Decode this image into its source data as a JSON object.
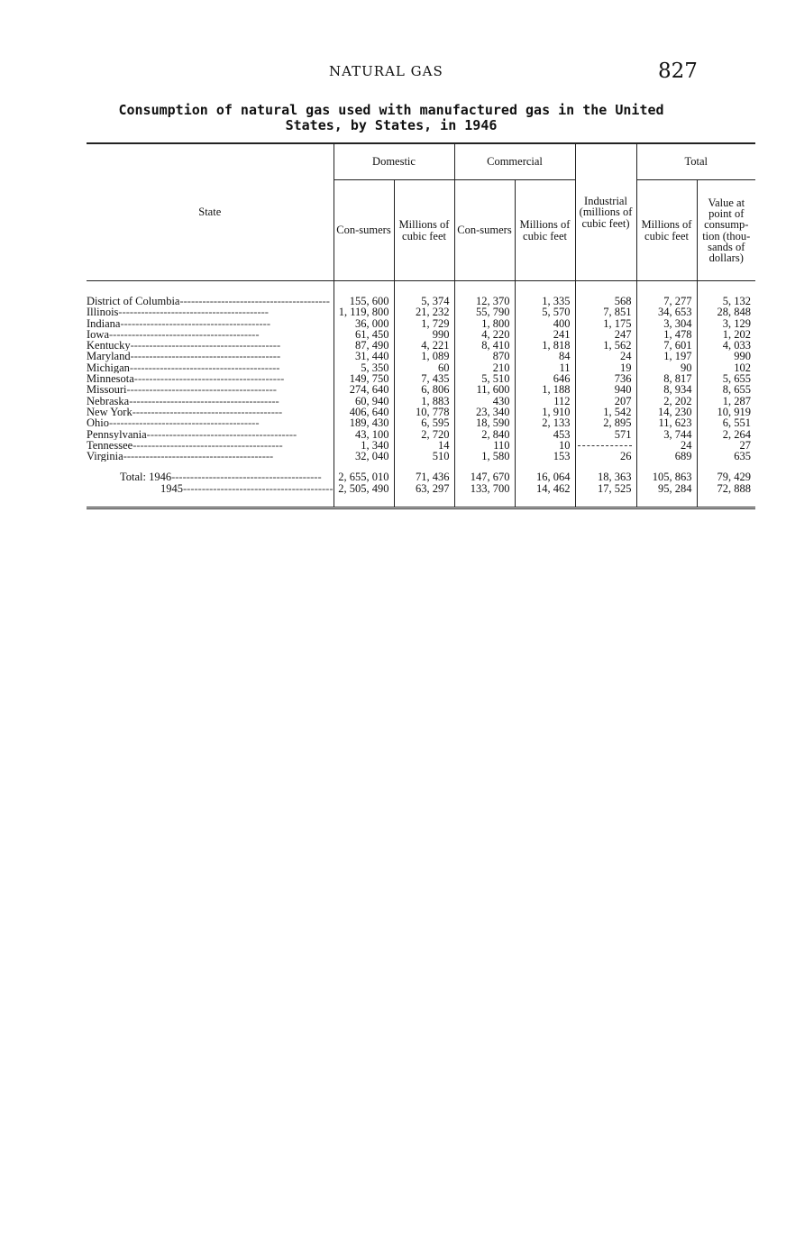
{
  "header": {
    "running_title": "NATURAL GAS",
    "page_number": "827"
  },
  "table": {
    "title": "Consumption of natural gas used with manufactured gas in the United States, by States, in 1946",
    "groups": {
      "domestic": "Domestic",
      "commercial": "Commercial",
      "total": "Total"
    },
    "columns": {
      "state": "State",
      "consumers": "Con-sumers",
      "mcf": "Millions of cubic feet",
      "industrial": "Industrial (millions of cubic feet)",
      "value": "Value at point of consump-tion (thou-sands of dollars)"
    },
    "rows": [
      {
        "state": "District of Columbia",
        "dom_cons": "155, 600",
        "dom_mcf": "5, 374",
        "com_cons": "12, 370",
        "com_mcf": "1, 335",
        "ind": "568",
        "tot_mcf": "7, 277",
        "value": "5, 132"
      },
      {
        "state": "Illinois",
        "dom_cons": "1, 119, 800",
        "dom_mcf": "21, 232",
        "com_cons": "55, 790",
        "com_mcf": "5, 570",
        "ind": "7, 851",
        "tot_mcf": "34, 653",
        "value": "28, 848"
      },
      {
        "state": "Indiana",
        "dom_cons": "36, 000",
        "dom_mcf": "1, 729",
        "com_cons": "1, 800",
        "com_mcf": "400",
        "ind": "1, 175",
        "tot_mcf": "3, 304",
        "value": "3, 129"
      },
      {
        "state": "Iowa",
        "dom_cons": "61, 450",
        "dom_mcf": "990",
        "com_cons": "4, 220",
        "com_mcf": "241",
        "ind": "247",
        "tot_mcf": "1, 478",
        "value": "1, 202"
      },
      {
        "state": "Kentucky",
        "dom_cons": "87, 490",
        "dom_mcf": "4, 221",
        "com_cons": "8, 410",
        "com_mcf": "1, 818",
        "ind": "1, 562",
        "tot_mcf": "7, 601",
        "value": "4, 033"
      },
      {
        "state": "Maryland",
        "dom_cons": "31, 440",
        "dom_mcf": "1, 089",
        "com_cons": "870",
        "com_mcf": "84",
        "ind": "24",
        "tot_mcf": "1, 197",
        "value": "990"
      },
      {
        "state": "Michigan",
        "dom_cons": "5, 350",
        "dom_mcf": "60",
        "com_cons": "210",
        "com_mcf": "11",
        "ind": "19",
        "tot_mcf": "90",
        "value": "102"
      },
      {
        "state": "Minnesota",
        "dom_cons": "149, 750",
        "dom_mcf": "7, 435",
        "com_cons": "5, 510",
        "com_mcf": "646",
        "ind": "736",
        "tot_mcf": "8, 817",
        "value": "5, 655"
      },
      {
        "state": "Missouri",
        "dom_cons": "274, 640",
        "dom_mcf": "6, 806",
        "com_cons": "11, 600",
        "com_mcf": "1, 188",
        "ind": "940",
        "tot_mcf": "8, 934",
        "value": "8, 655"
      },
      {
        "state": "Nebraska",
        "dom_cons": "60, 940",
        "dom_mcf": "1, 883",
        "com_cons": "430",
        "com_mcf": "112",
        "ind": "207",
        "tot_mcf": "2, 202",
        "value": "1, 287"
      },
      {
        "state": "New York",
        "dom_cons": "406, 640",
        "dom_mcf": "10, 778",
        "com_cons": "23, 340",
        "com_mcf": "1, 910",
        "ind": "1, 542",
        "tot_mcf": "14, 230",
        "value": "10, 919"
      },
      {
        "state": "Ohio",
        "dom_cons": "189, 430",
        "dom_mcf": "6, 595",
        "com_cons": "18, 590",
        "com_mcf": "2, 133",
        "ind": "2, 895",
        "tot_mcf": "11, 623",
        "value": "6, 551"
      },
      {
        "state": "Pennsylvania",
        "dom_cons": "43, 100",
        "dom_mcf": "2, 720",
        "com_cons": "2, 840",
        "com_mcf": "453",
        "ind": "571",
        "tot_mcf": "3, 744",
        "value": "2, 264"
      },
      {
        "state": "Tennessee",
        "dom_cons": "1, 340",
        "dom_mcf": "14",
        "com_cons": "110",
        "com_mcf": "10",
        "ind": "",
        "tot_mcf": "24",
        "value": "27"
      },
      {
        "state": "Virginia",
        "dom_cons": "32, 040",
        "dom_mcf": "510",
        "com_cons": "1, 580",
        "com_mcf": "153",
        "ind": "26",
        "tot_mcf": "689",
        "value": "635"
      }
    ],
    "totals": [
      {
        "state": "Total: 1946",
        "dom_cons": "2, 655, 010",
        "dom_mcf": "71, 436",
        "com_cons": "147, 670",
        "com_mcf": "16, 064",
        "ind": "18, 363",
        "tot_mcf": "105, 863",
        "value": "79, 429"
      },
      {
        "state": "1945",
        "dom_cons": "2, 505, 490",
        "dom_mcf": "63, 297",
        "com_cons": "133, 700",
        "com_mcf": "14, 462",
        "ind": "17, 525",
        "tot_mcf": "95, 284",
        "value": "72, 888"
      }
    ]
  }
}
